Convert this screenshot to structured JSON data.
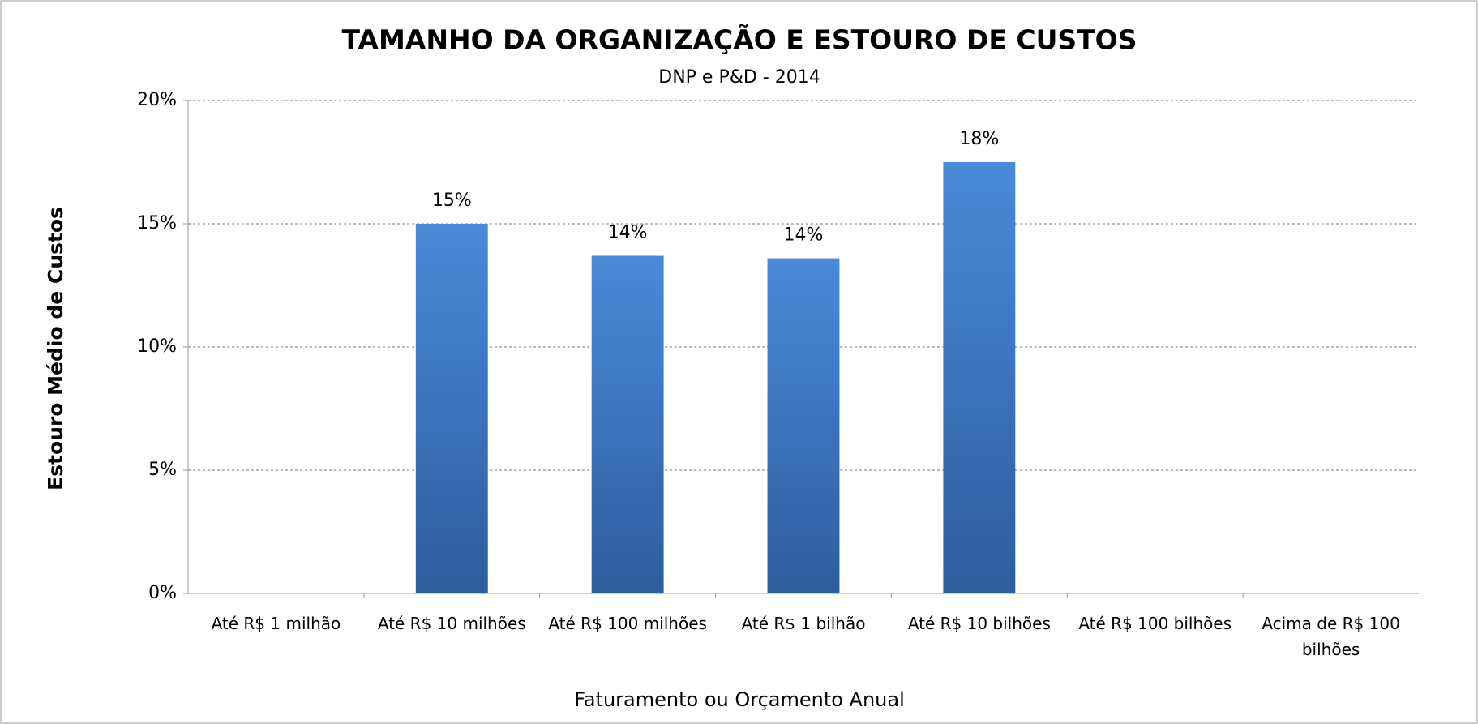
{
  "chart_data": {
    "type": "bar",
    "title": "TAMANHO DA ORGANIZAÇÃO E ESTOURO DE CUSTOS",
    "subtitle": "DNP e P&D - 2014",
    "x_label": "Faturamento ou Orçamento Anual",
    "y_label": "Estouro Médio de Custos",
    "categories": [
      "Até R$ 1 milhão",
      "Até R$ 10 milhões",
      "Até R$ 100 milhões",
      "Até R$ 1 bilhão",
      "Até R$ 10 bilhões",
      "Até R$ 100 bilhões",
      "Acima de R$ 100 bilhões"
    ],
    "values": [
      null,
      15,
      13.7,
      13.6,
      17.5,
      null,
      null
    ],
    "value_labels": [
      null,
      "15%",
      "14%",
      "14%",
      "18%",
      null,
      null
    ],
    "color": "#3f7fd0",
    "ylim": [
      0,
      20
    ],
    "yticks": [
      {
        "value": 0,
        "label": "0%"
      },
      {
        "value": 5,
        "label": "5%"
      },
      {
        "value": 10,
        "label": "10%"
      },
      {
        "value": 15,
        "label": "15%"
      },
      {
        "value": 20,
        "label": "20%"
      }
    ],
    "grid": true
  }
}
